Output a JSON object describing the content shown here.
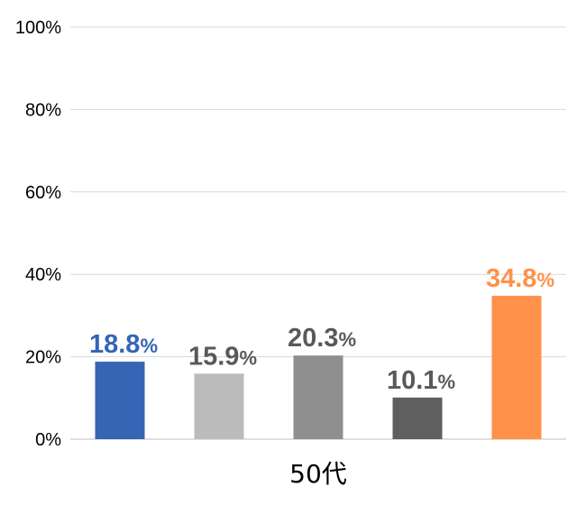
{
  "chart_data": {
    "type": "bar",
    "categories": [
      "50代"
    ],
    "series": [
      {
        "values": [
          18.8
        ],
        "color": "#3565B4"
      },
      {
        "values": [
          15.9
        ],
        "color": "#BBBBBB"
      },
      {
        "values": [
          20.3
        ],
        "color": "#8F8F8F"
      },
      {
        "values": [
          10.1
        ],
        "color": "#5F5F5F"
      },
      {
        "values": [
          34.8
        ],
        "color": "#FF914B"
      }
    ],
    "data_labels": [
      "18.8%",
      "15.9%",
      "20.3%",
      "10.1%",
      "34.8%"
    ],
    "label_colors": [
      "#3565B4",
      "#595959",
      "#595959",
      "#595959",
      "#FF914B"
    ],
    "y_ticks": [
      "0%",
      "20%",
      "40%",
      "60%",
      "80%",
      "100%"
    ],
    "ylim": [
      0,
      100
    ],
    "grid": true,
    "legend": "none"
  }
}
